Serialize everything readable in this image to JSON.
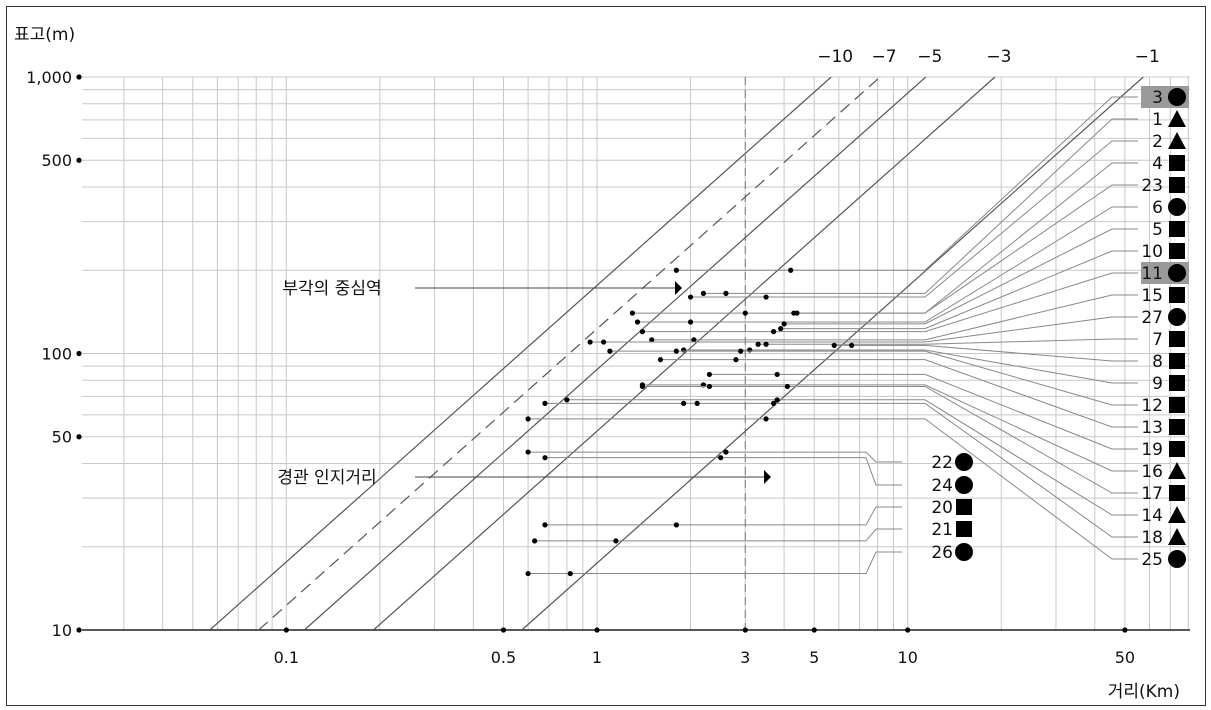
{
  "chart_data": {
    "type": "scatter",
    "xlabel": "거리(Km)",
    "ylabel": "표고(m)",
    "x_scale": "log",
    "y_scale": "log",
    "xlim": [
      0.022,
      81
    ],
    "ylim": [
      10,
      1000
    ],
    "x_ticks": [
      0.1,
      0.5,
      1,
      3,
      5,
      10,
      50
    ],
    "x_tick_labels": [
      "0.1",
      "0.5",
      "1",
      "3",
      "5",
      "10",
      "50"
    ],
    "y_ticks": [
      10,
      50,
      100,
      500,
      1000
    ],
    "y_tick_labels": [
      "10",
      "50",
      "100",
      "500",
      "1,000"
    ],
    "grid": true,
    "dashed_reference_x": 3,
    "angle_lines": [
      {
        "label": "−10",
        "style": "solid"
      },
      {
        "label": "−7",
        "style": "dashed"
      },
      {
        "label": "−5",
        "style": "solid"
      },
      {
        "label": "−3",
        "style": "solid"
      },
      {
        "label": "−1",
        "style": "solid"
      }
    ],
    "annotations": [
      {
        "text": "부각의 중심역"
      },
      {
        "text": "경관 인지거리"
      }
    ],
    "sites": [
      {
        "id": "3",
        "marker": "circle",
        "highlight": true,
        "y": 200,
        "x": [
          1.8,
          4.2
        ]
      },
      {
        "id": "1",
        "marker": "triangle",
        "highlight": false,
        "y": 165,
        "x": [
          2.2,
          2.6
        ]
      },
      {
        "id": "2",
        "marker": "triangle",
        "highlight": false,
        "y": 160,
        "x": [
          2.0,
          3.5
        ]
      },
      {
        "id": "4",
        "marker": "square",
        "highlight": false,
        "y": 140,
        "x": [
          1.3,
          3.0
        ]
      },
      {
        "id": "23",
        "marker": "square",
        "highlight": false,
        "y": 140,
        "x": [
          4.3,
          4.4
        ]
      },
      {
        "id": "6",
        "marker": "circle",
        "highlight": false,
        "y": 130,
        "x": [
          1.35,
          2.0
        ]
      },
      {
        "id": "5",
        "marker": "square",
        "highlight": false,
        "y": 128,
        "x": [
          4.0
        ]
      },
      {
        "id": "10",
        "marker": "square",
        "highlight": false,
        "y": 123,
        "x": [
          3.9
        ]
      },
      {
        "id": "11",
        "marker": "circle",
        "highlight": true,
        "y": 120,
        "x": [
          1.4,
          3.7
        ]
      },
      {
        "id": "15",
        "marker": "square",
        "highlight": false,
        "y": 112,
        "x": [
          1.5,
          2.05
        ]
      },
      {
        "id": "27",
        "marker": "circle",
        "highlight": false,
        "y": 110,
        "x": [
          0.95,
          1.05
        ]
      },
      {
        "id": "7",
        "marker": "square",
        "highlight": false,
        "y": 108,
        "x": [
          3.3,
          3.5
        ]
      },
      {
        "id": "8",
        "marker": "square",
        "highlight": false,
        "y": 107,
        "x": [
          5.8,
          6.6
        ]
      },
      {
        "id": "9",
        "marker": "square",
        "highlight": false,
        "y": 103,
        "x": [
          1.9,
          3.1
        ]
      },
      {
        "id": "12",
        "marker": "square",
        "highlight": false,
        "y": 102,
        "x": [
          1.1,
          1.8,
          2.9
        ]
      },
      {
        "id": "13",
        "marker": "square",
        "highlight": false,
        "y": 95,
        "x": [
          1.6,
          2.8
        ]
      },
      {
        "id": "19",
        "marker": "square",
        "highlight": false,
        "y": 84,
        "x": [
          2.3,
          3.8
        ]
      },
      {
        "id": "16",
        "marker": "triangle",
        "highlight": false,
        "y": 77,
        "x": [
          1.4,
          2.2
        ]
      },
      {
        "id": "17",
        "marker": "square",
        "highlight": false,
        "y": 76,
        "x": [
          1.4,
          2.3,
          4.1
        ]
      },
      {
        "id": "14",
        "marker": "triangle",
        "highlight": false,
        "y": 68,
        "x": [
          0.8,
          3.8
        ]
      },
      {
        "id": "18",
        "marker": "triangle",
        "highlight": false,
        "y": 66,
        "x": [
          0.68,
          1.9,
          2.1,
          3.7
        ]
      },
      {
        "id": "25",
        "marker": "circle",
        "highlight": false,
        "y": 58,
        "x": [
          0.6,
          3.5
        ]
      },
      {
        "id": "22",
        "marker": "circle",
        "highlight": false,
        "y": 44,
        "x": [
          0.6,
          2.6
        ]
      },
      {
        "id": "24",
        "marker": "circle",
        "highlight": false,
        "y": 42,
        "x": [
          0.68,
          2.5
        ]
      },
      {
        "id": "20",
        "marker": "square",
        "highlight": false,
        "y": 24,
        "x": [
          0.68,
          1.8
        ]
      },
      {
        "id": "21",
        "marker": "square",
        "highlight": false,
        "y": 21,
        "x": [
          0.63,
          1.15
        ]
      },
      {
        "id": "26",
        "marker": "circle",
        "highlight": false,
        "y": 16,
        "x": [
          0.6,
          0.82
        ]
      }
    ]
  }
}
